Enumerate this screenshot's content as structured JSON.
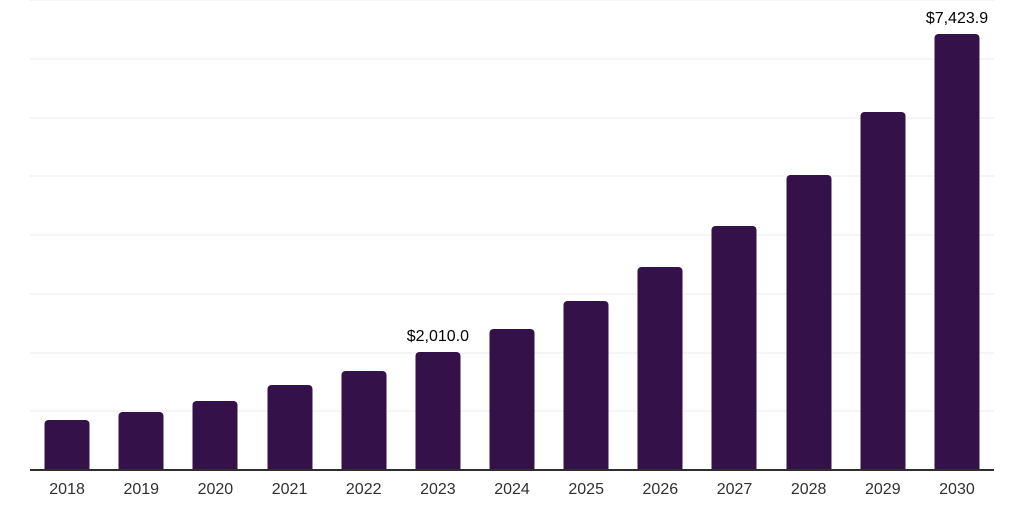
{
  "chart": {
    "background_color": "#ffffff",
    "bar_color": "#35114a",
    "gridline_color": "#f5f5f5",
    "axis_line_color": "#2e2e2e",
    "tick_label_color": "#303030",
    "data_label_color": "#000000"
  },
  "chart_data": {
    "type": "bar",
    "title": "",
    "xlabel": "",
    "ylabel": "",
    "categories": [
      "2018",
      "2019",
      "2020",
      "2021",
      "2022",
      "2023",
      "2024",
      "2025",
      "2026",
      "2027",
      "2028",
      "2029",
      "2030"
    ],
    "values": [
      855,
      985,
      1170,
      1440,
      1680,
      2010.0,
      2400,
      2880,
      3460,
      4155,
      5020,
      6100,
      7423.9
    ],
    "data_labels": {
      "2023": "$2,010.0",
      "2030": "$7,423.9"
    },
    "value_prefix": "$",
    "ylim": [
      0,
      8000
    ],
    "gridline_step": 1000,
    "grid": "horizontal-only",
    "y_axis_ticks_visible": false,
    "legend": "none"
  }
}
